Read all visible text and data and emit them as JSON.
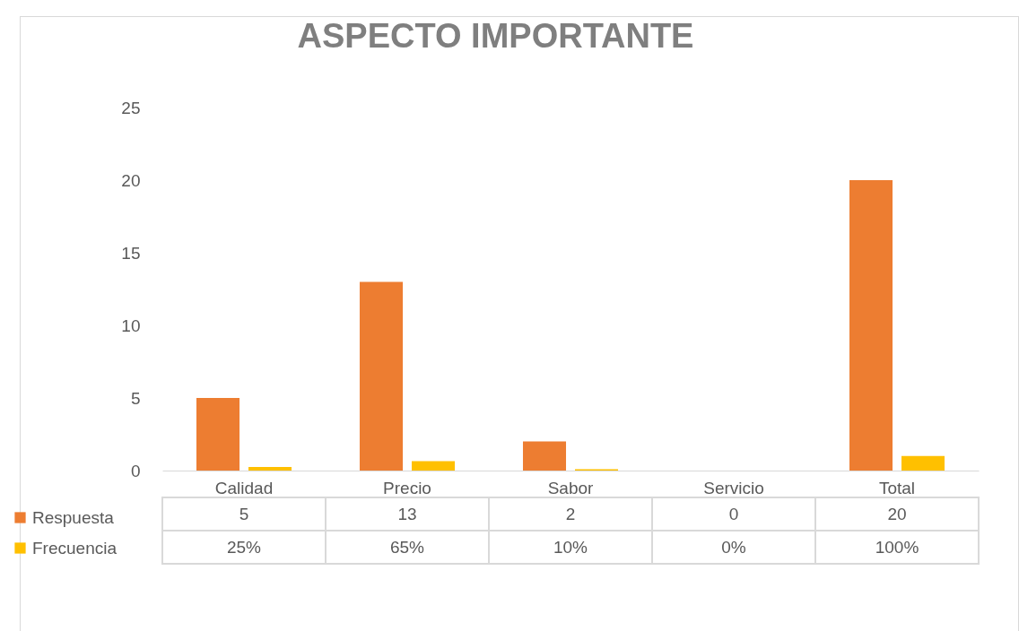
{
  "chart_data": {
    "type": "bar",
    "title": "ASPECTO IMPORTANTE",
    "categories": [
      "Calidad",
      "Precio",
      "Sabor",
      "Servicio",
      "Total"
    ],
    "series": [
      {
        "name": "Respuesta",
        "color": "#ed7d31",
        "values": [
          5,
          13,
          2,
          0,
          20
        ],
        "value_labels": [
          "5",
          "13",
          "2",
          "0",
          "20"
        ]
      },
      {
        "name": "Frecuencia",
        "color": "#ffc000",
        "values": [
          0.25,
          0.65,
          0.1,
          0,
          1
        ],
        "value_labels": [
          "25%",
          "65%",
          "10%",
          "0%",
          "100%"
        ]
      }
    ],
    "ylim": [
      0,
      25
    ],
    "yticks": [
      0,
      5,
      10,
      15,
      20,
      25
    ],
    "grid": false,
    "legend": "bottom"
  }
}
